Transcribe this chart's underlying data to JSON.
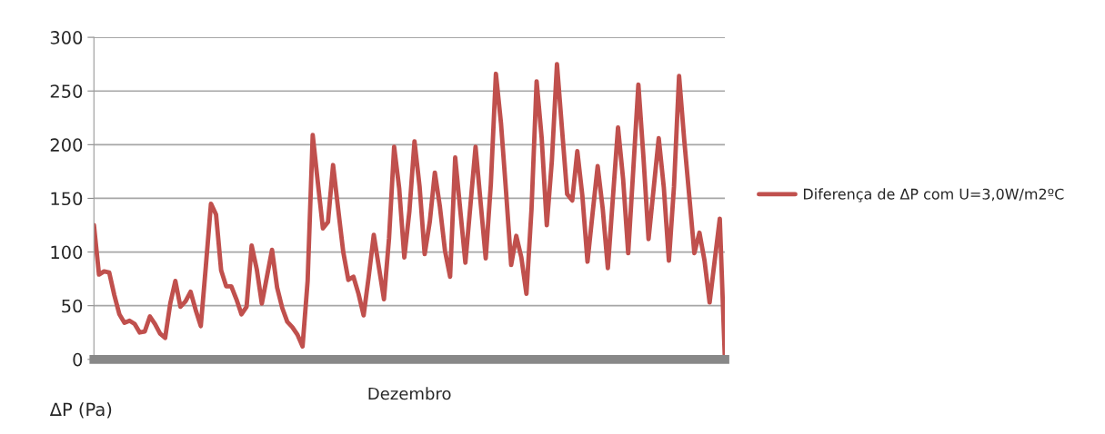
{
  "chart_data": {
    "type": "line",
    "xlabel": "Dezembro",
    "ylabel": "ΔP (Pa)",
    "categories": [
      null,
      null,
      null,
      null,
      null,
      null,
      null,
      null,
      null,
      null,
      null,
      null,
      null,
      null,
      null,
      null,
      null,
      null,
      null,
      null,
      null,
      null,
      null,
      null,
      null,
      null,
      null,
      null,
      null,
      null,
      null,
      null,
      null,
      null,
      null,
      null,
      null,
      null,
      null,
      null,
      null,
      null,
      null,
      null,
      null,
      null,
      null,
      null,
      null,
      null,
      null,
      null,
      null,
      null,
      null,
      null,
      null,
      null,
      null,
      null,
      null,
      null,
      null,
      null,
      null,
      null,
      null,
      null,
      null,
      null,
      null,
      null,
      null,
      null,
      null,
      null,
      null,
      null,
      null,
      null,
      null,
      null,
      null,
      null,
      null,
      null,
      null,
      null,
      null,
      null,
      null,
      null,
      null,
      null,
      null,
      null,
      null,
      null,
      null,
      null,
      null,
      null,
      null,
      null,
      null,
      null,
      null,
      null,
      null,
      null,
      null,
      null,
      null,
      null,
      null,
      null,
      null,
      null,
      null,
      null,
      null,
      null,
      null,
      null,
      null
    ],
    "ylim": [
      0,
      300
    ],
    "yticks": [
      0,
      50,
      100,
      150,
      200,
      250,
      300
    ],
    "tick_labels": "y",
    "grid": "y",
    "legend": "right",
    "marker": "none",
    "line_style": "solid",
    "series": [
      {
        "name": "Diferença de ΔP com U=3,0W/m2ºC",
        "color": "#c0504d",
        "values": [
          125,
          79,
          82,
          81,
          60,
          42,
          34,
          36,
          33,
          25,
          26,
          40,
          33,
          24,
          20,
          52,
          73,
          49,
          54,
          63,
          46,
          31,
          87,
          145,
          135,
          83,
          68,
          68,
          56,
          42,
          49,
          106,
          84,
          52,
          77,
          102,
          67,
          48,
          35,
          30,
          23,
          12,
          73,
          209,
          165,
          122,
          128,
          181,
          140,
          100,
          74,
          77,
          61,
          41,
          77,
          116,
          86,
          56,
          113,
          198,
          159,
          95,
          138,
          203,
          161,
          98,
          128,
          174,
          142,
          101,
          77,
          188,
          139,
          90,
          144,
          198,
          146,
          94,
          163,
          266,
          220,
          156,
          88,
          115,
          95,
          61,
          140,
          259,
          206,
          125,
          185,
          275,
          214,
          154,
          148,
          194,
          152,
          91,
          136,
          180,
          140,
          85,
          151,
          216,
          168,
          99,
          177,
          256,
          188,
          112,
          159,
          206,
          160,
          92,
          161,
          264,
          205,
          152,
          99,
          118,
          92,
          53,
          92,
          131,
          0
        ]
      }
    ]
  }
}
